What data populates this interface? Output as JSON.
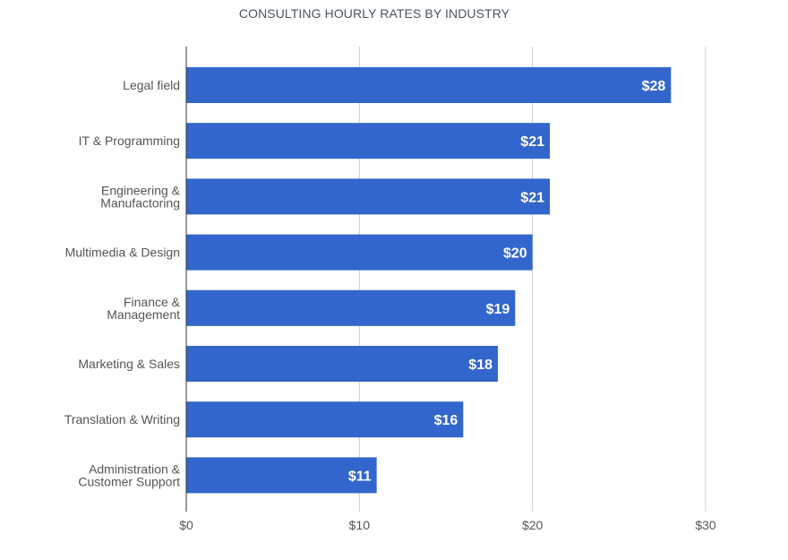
{
  "chart_data": {
    "type": "bar",
    "orientation": "horizontal",
    "title": "CONSULTING HOURLY RATES BY INDUSTRY",
    "categories": [
      [
        "Legal field"
      ],
      [
        "IT & Programming"
      ],
      [
        "Engineering &",
        "Manufactoring"
      ],
      [
        "Multimedia & Design"
      ],
      [
        "Finance &",
        "Management"
      ],
      [
        "Marketing & Sales"
      ],
      [
        "Translation & Writing"
      ],
      [
        "Administration &",
        "Customer Support"
      ]
    ],
    "values": [
      28,
      21,
      21,
      20,
      19,
      18,
      16,
      11
    ],
    "data_labels": [
      "$28",
      "$21",
      "$21",
      "$20",
      "$19",
      "$18",
      "$16",
      "$11"
    ],
    "x_ticks": [
      {
        "value": 0,
        "label": "$0"
      },
      {
        "value": 10,
        "label": "$10"
      },
      {
        "value": 20,
        "label": "$20"
      },
      {
        "value": 30,
        "label": "$30"
      }
    ],
    "xlim": [
      0,
      30
    ],
    "grid": true,
    "bar_color": "#3366cc",
    "grid_color": "#cccccc",
    "axis_color": "#333333"
  }
}
